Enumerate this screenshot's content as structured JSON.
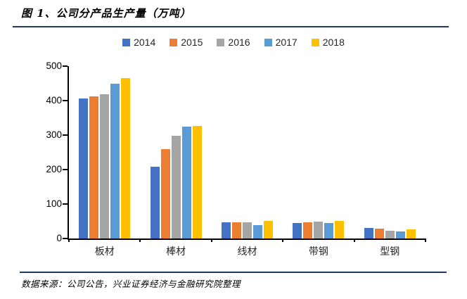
{
  "page": {
    "title": "图 1、公司分产品生产量（万吨）",
    "footer": "数据来源：公司公告，兴业证券经济与金融研究院整理",
    "accent_line_color": "#1F3864"
  },
  "chart_data": {
    "type": "bar",
    "title": "图 1、公司分产品生产量（万吨）",
    "categories": [
      "板材",
      "棒材",
      "线材",
      "带钢",
      "型钢"
    ],
    "series": [
      {
        "name": "2014",
        "color": "#4472C4",
        "values": [
          407,
          208,
          46,
          45,
          31
        ]
      },
      {
        "name": "2015",
        "color": "#ED7D31",
        "values": [
          413,
          260,
          47,
          46,
          28
        ]
      },
      {
        "name": "2016",
        "color": "#A5A5A5",
        "values": [
          419,
          298,
          46,
          48,
          22
        ]
      },
      {
        "name": "2017",
        "color": "#5B9BD5",
        "values": [
          450,
          325,
          39,
          45,
          20
        ]
      },
      {
        "name": "2018",
        "color": "#FFC000",
        "values": [
          465,
          326,
          51,
          52,
          27
        ]
      }
    ],
    "xlabel": "",
    "ylabel": "",
    "ylim": [
      0,
      500
    ],
    "yticks": [
      0,
      100,
      200,
      300,
      400,
      500
    ],
    "legend_position": "top",
    "grid": false
  }
}
